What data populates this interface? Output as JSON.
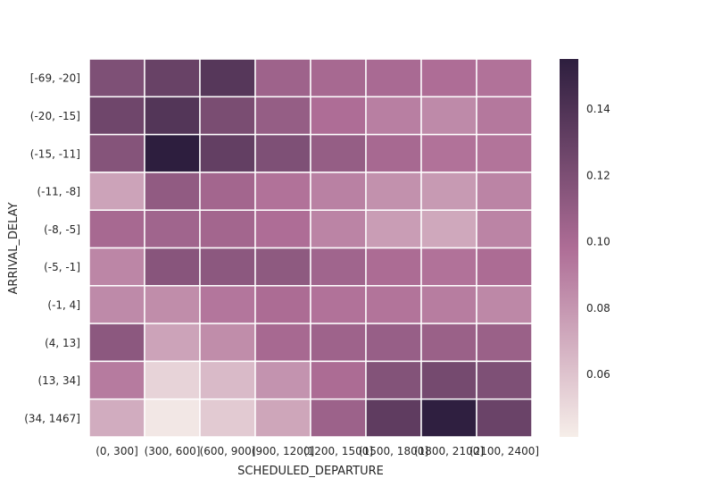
{
  "chart_data": {
    "type": "heatmap",
    "title": "",
    "xlabel": "SCHEDULED_DEPARTURE",
    "ylabel": "ARRIVAL_DELAY",
    "x_categories": [
      "(0, 300]",
      "(300, 600]",
      "(600, 900]",
      "(900, 1200]",
      "(1200, 1500]",
      "(1500, 1800]",
      "(1800, 2100]",
      "(2100, 2400]"
    ],
    "y_categories": [
      "[-69, -20]",
      "(-20, -15]",
      "(-15, -11]",
      "(-11, -8]",
      "(-8, -5]",
      "(-5, -1]",
      "(-1, 4]",
      "(4, 13]",
      "(13, 34]",
      "(34, 1467]"
    ],
    "values": [
      [
        0.119,
        0.129,
        0.137,
        0.105,
        0.101,
        0.1,
        0.098,
        0.096
      ],
      [
        0.126,
        0.138,
        0.121,
        0.109,
        0.098,
        0.09,
        0.085,
        0.093
      ],
      [
        0.116,
        0.155,
        0.131,
        0.119,
        0.109,
        0.101,
        0.096,
        0.095
      ],
      [
        0.074,
        0.111,
        0.103,
        0.096,
        0.089,
        0.082,
        0.078,
        0.088
      ],
      [
        0.101,
        0.104,
        0.103,
        0.098,
        0.088,
        0.077,
        0.072,
        0.088
      ],
      [
        0.087,
        0.115,
        0.113,
        0.112,
        0.104,
        0.099,
        0.096,
        0.099
      ],
      [
        0.085,
        0.084,
        0.094,
        0.099,
        0.096,
        0.095,
        0.091,
        0.086
      ],
      [
        0.113,
        0.074,
        0.084,
        0.101,
        0.105,
        0.108,
        0.107,
        0.107
      ],
      [
        0.092,
        0.053,
        0.064,
        0.081,
        0.099,
        0.117,
        0.123,
        0.119
      ],
      [
        0.07,
        0.044,
        0.057,
        0.073,
        0.106,
        0.133,
        0.154,
        0.128
      ]
    ],
    "colorbar": {
      "min": 0.041,
      "max": 0.155,
      "ticks": [
        0.06,
        0.08,
        0.1,
        0.12,
        0.14
      ],
      "tick_labels": [
        "0.06",
        "0.08",
        "0.10",
        "0.12",
        "0.14"
      ]
    },
    "grid": false,
    "colors": {
      "low": "#f6eee9",
      "mid": "#ae6d96",
      "high": "#2d1e3e",
      "cell_border": "#ffffff",
      "text": "#262626"
    }
  }
}
